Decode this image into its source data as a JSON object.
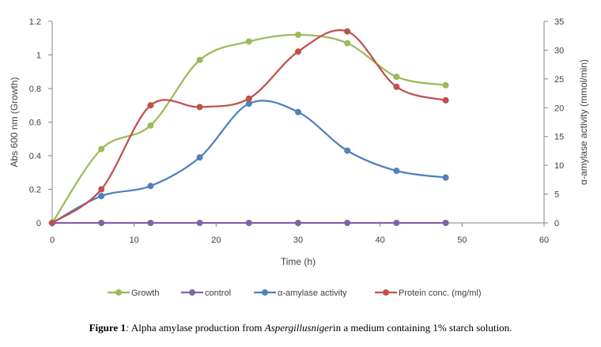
{
  "caption": {
    "label": "Figure 1",
    "colon": ":",
    "text_before": " Alpha amylase production from ",
    "organism": "Aspergillusniger",
    "text_after": "in a medium containing 1% starch solution."
  },
  "chart_data": {
    "type": "line",
    "xlabel": "Time (h)",
    "ylabel_left": "Abs 600 nm (Growth)",
    "ylabel_right": "α-amylase activity (mmol/min)",
    "xlim": [
      0,
      60
    ],
    "x_ticks": [
      "0",
      "10",
      "20",
      "30",
      "40",
      "50",
      "60"
    ],
    "ylim_left": [
      0,
      1.2
    ],
    "y_ticks_left": [
      "0",
      "0.2",
      "0.4",
      "0.6",
      "0.8",
      "1",
      "1.2"
    ],
    "ylim_right": [
      0,
      35
    ],
    "y_ticks_right": [
      "0",
      "5",
      "10",
      "15",
      "20",
      "25",
      "30",
      "35"
    ],
    "grid": false,
    "legend_position": "bottom",
    "series": [
      {
        "name": "Growth",
        "axis": "left",
        "color": "#9bbb59",
        "x": [
          0,
          6,
          12,
          18,
          24,
          30,
          36,
          42,
          48
        ],
        "y": [
          0,
          0.44,
          0.58,
          0.97,
          1.08,
          1.12,
          1.07,
          0.87,
          0.82
        ]
      },
      {
        "name": "control",
        "axis": "left",
        "color": "#8064a2",
        "x": [
          0,
          6,
          12,
          18,
          24,
          30,
          36,
          42,
          48
        ],
        "y": [
          0,
          0,
          0,
          0,
          0,
          0,
          0,
          0,
          0
        ]
      },
      {
        "name": "α-amylase  activity",
        "axis": "left",
        "color": "#4f81bd",
        "x": [
          0,
          6,
          12,
          18,
          24,
          30,
          36,
          42,
          48
        ],
        "y": [
          0,
          0.16,
          0.22,
          0.39,
          0.71,
          0.66,
          0.43,
          0.31,
          0.27
        ]
      },
      {
        "name": "Protein conc. (mg/ml)",
        "axis": "left",
        "color": "#c0504d",
        "x": [
          0,
          6,
          12,
          18,
          24,
          30,
          36,
          42,
          48
        ],
        "y": [
          0,
          0.2,
          0.7,
          0.69,
          0.74,
          1.02,
          1.14,
          0.81,
          0.73
        ]
      }
    ]
  }
}
